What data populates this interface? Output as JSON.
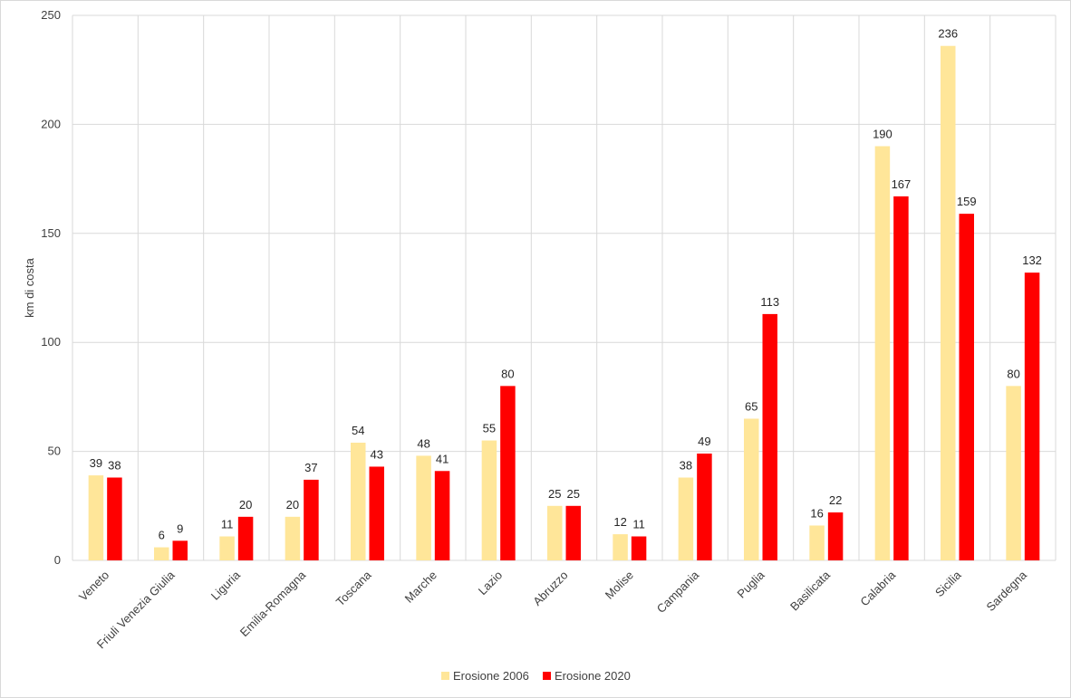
{
  "chart_data": {
    "type": "bar",
    "title": "",
    "xlabel": "",
    "ylabel": "km di costa",
    "ylim": [
      0,
      250
    ],
    "yticks": [
      0,
      50,
      100,
      150,
      200,
      250
    ],
    "grid": true,
    "legend_position": "bottom",
    "categories": [
      "Veneto",
      "Friuli Venezia Giulia",
      "Liguria",
      "Emilia-Romagna",
      "Toscana",
      "Marche",
      "Lazio",
      "Abruzzo",
      "Molise",
      "Campania",
      "Puglia",
      "Basilicata",
      "Calabria",
      "Sicilia",
      "Sardegna"
    ],
    "series": [
      {
        "name": "Erosione 2006",
        "color": "#FFE699",
        "values": [
          39,
          6,
          11,
          20,
          54,
          48,
          55,
          25,
          12,
          38,
          65,
          16,
          190,
          236,
          80
        ]
      },
      {
        "name": "Erosione 2020",
        "color": "#FF0000",
        "values": [
          38,
          9,
          20,
          37,
          43,
          41,
          80,
          25,
          11,
          49,
          113,
          22,
          167,
          159,
          132
        ]
      }
    ]
  }
}
